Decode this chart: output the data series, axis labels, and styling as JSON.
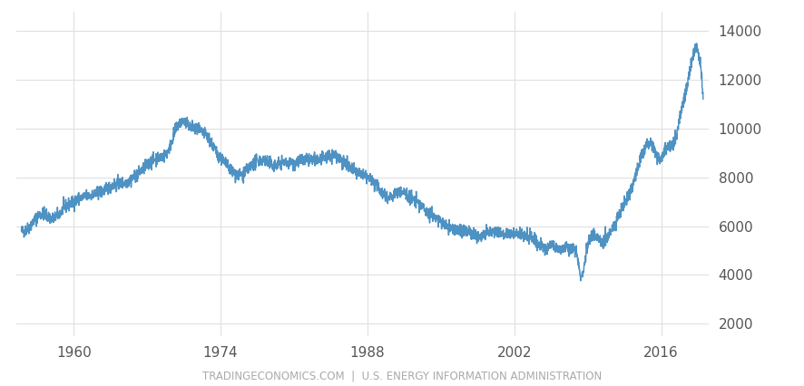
{
  "line_color": "#4e92c3",
  "background_color": "#ffffff",
  "grid_color": "#e0e0e0",
  "tick_color": "#555555",
  "footer_text": "TRADINGECONOMICS.COM  |  U.S. ENERGY INFORMATION ADMINISTRATION",
  "footer_color": "#aaaaaa",
  "xtick_labels": [
    "1960",
    "1974",
    "1988",
    "2002",
    "2016"
  ],
  "xtick_positions": [
    1960,
    1974,
    1988,
    2002,
    2016
  ],
  "ytick_labels": [
    "2000",
    "4000",
    "6000",
    "8000",
    "10000",
    "12000",
    "14000"
  ],
  "ytick_positions": [
    2000,
    4000,
    6000,
    8000,
    10000,
    12000,
    14000
  ],
  "ylim": [
    1500,
    14800
  ],
  "xlim_start": 1954.5,
  "xlim_end": 2020.5,
  "line_width": 1.1,
  "key_years": [
    1955.0,
    1956.0,
    1957.0,
    1958.0,
    1959.0,
    1960.0,
    1961.0,
    1962.0,
    1963.0,
    1964.0,
    1965.0,
    1966.0,
    1967.0,
    1968.0,
    1969.0,
    1970.0,
    1971.0,
    1972.0,
    1973.0,
    1973.5,
    1974.0,
    1975.0,
    1976.0,
    1977.0,
    1978.0,
    1979.0,
    1980.0,
    1981.0,
    1982.0,
    1983.0,
    1984.0,
    1985.0,
    1986.0,
    1987.0,
    1988.0,
    1989.0,
    1990.0,
    1991.0,
    1992.0,
    1993.0,
    1994.0,
    1995.0,
    1996.0,
    1997.0,
    1998.0,
    1999.0,
    2000.0,
    2001.0,
    2002.0,
    2003.0,
    2004.0,
    2005.0,
    2005.5,
    2006.0,
    2007.0,
    2007.5,
    2008.0,
    2008.3,
    2008.7,
    2009.0,
    2010.0,
    2011.0,
    2012.0,
    2013.0,
    2014.0,
    2015.0,
    2016.0,
    2016.5,
    2017.0,
    2017.5,
    2018.0,
    2018.5,
    2019.0,
    2019.5,
    2020.0
  ],
  "key_values": [
    5800,
    6100,
    6500,
    6300,
    6700,
    7000,
    7200,
    7300,
    7500,
    7700,
    7800,
    8100,
    8500,
    8800,
    9100,
    10200,
    10100,
    9900,
    9500,
    9100,
    8800,
    8300,
    8100,
    8500,
    8700,
    8500,
    8600,
    8600,
    8700,
    8700,
    8800,
    8900,
    8500,
    8200,
    8000,
    7600,
    7200,
    7400,
    7200,
    6900,
    6500,
    6200,
    5900,
    5800,
    5700,
    5600,
    5800,
    5700,
    5700,
    5600,
    5400,
    5100,
    5200,
    5100,
    5100,
    5000,
    4800,
    4000,
    4500,
    5200,
    5500,
    5600,
    6500,
    7400,
    8700,
    9400,
    8800,
    9200,
    9300,
    9800,
    10900,
    11800,
    12900,
    13200,
    11300
  ],
  "noise_seed": 42,
  "noise_scale": 130
}
